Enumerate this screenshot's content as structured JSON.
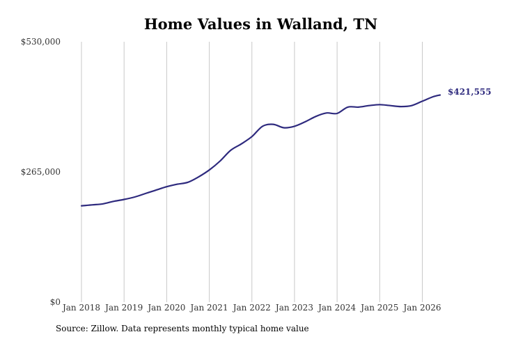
{
  "chart_data": {
    "type": "line",
    "title": "Home Values in Walland, TN",
    "xlabel": "",
    "ylabel": "",
    "source_note": "Source: Zillow. Data represents monthly typical home value",
    "ylim": [
      0,
      530000
    ],
    "y_ticks": [
      0,
      265000,
      530000
    ],
    "y_tick_labels": [
      "$0",
      "$265,000",
      "$530,000"
    ],
    "x_ticks": [
      "2018-01",
      "2019-01",
      "2020-01",
      "2021-01",
      "2022-01",
      "2023-01",
      "2024-01",
      "2025-01",
      "2026-01"
    ],
    "x_tick_labels": [
      "Jan 2018",
      "Jan 2019",
      "Jan 2020",
      "Jan 2021",
      "Jan 2022",
      "Jan 2023",
      "Jan 2024",
      "Jan 2025",
      "Jan 2026"
    ],
    "xlim": [
      "2018-01",
      "2026-06"
    ],
    "grid": "vertical",
    "line_color": "#2e2a7e",
    "grid_color": "#c8c8c8",
    "end_label": "$421,555",
    "series": [
      {
        "x": [
          "2018-01",
          "2018-04",
          "2018-07",
          "2018-10",
          "2019-01",
          "2019-04",
          "2019-07",
          "2019-10",
          "2020-01",
          "2020-04",
          "2020-07",
          "2020-10",
          "2021-01",
          "2021-04",
          "2021-07",
          "2021-10",
          "2022-01",
          "2022-04",
          "2022-07",
          "2022-10",
          "2023-01",
          "2023-04",
          "2023-07",
          "2023-10",
          "2024-01",
          "2024-04",
          "2024-07",
          "2024-10",
          "2025-01",
          "2025-04",
          "2025-07",
          "2025-10",
          "2026-01",
          "2026-04",
          "2026-06"
        ],
        "values": [
          196000,
          198000,
          200000,
          205000,
          209000,
          214000,
          221000,
          228000,
          235000,
          240000,
          244000,
          255000,
          269000,
          287000,
          309000,
          322000,
          337000,
          358000,
          362000,
          355000,
          358000,
          367000,
          378000,
          385000,
          384000,
          397000,
          397000,
          400000,
          402000,
          400000,
          398000,
          400000,
          409000,
          418000,
          421555
        ]
      }
    ]
  }
}
